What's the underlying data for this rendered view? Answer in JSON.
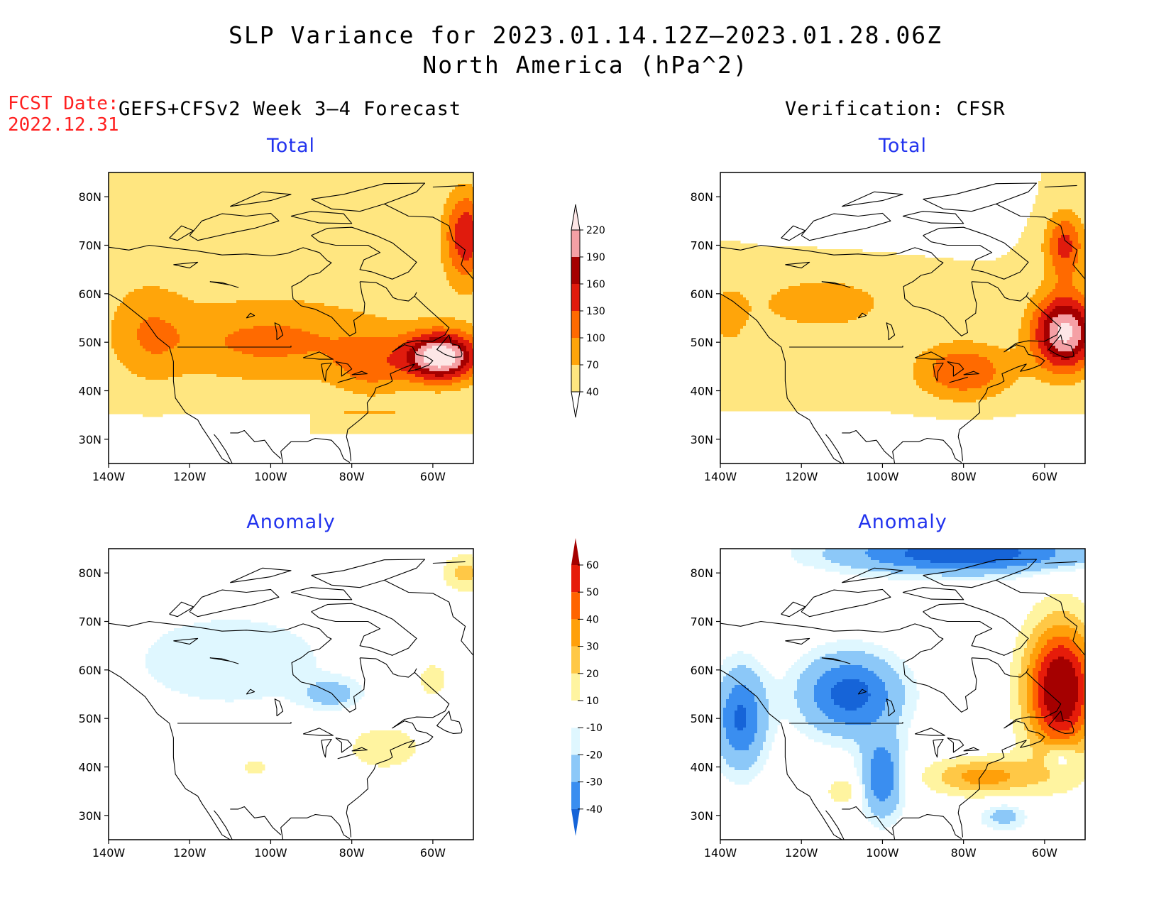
{
  "title_line1": "SLP Variance for 2023.01.14.12Z–2023.01.28.06Z",
  "title_line2": "North America (hPa^2)",
  "fcst_label": "FCST Date:",
  "fcst_date": "2022.12.31",
  "left_header": "GEFS+CFSv2 Week 3–4 Forecast",
  "right_header": "Verification: CFSR",
  "panels": [
    {
      "name": "forecast-total",
      "title": "Total"
    },
    {
      "name": "verification-total",
      "title": "Total"
    },
    {
      "name": "forecast-anomaly",
      "title": "Anomaly"
    },
    {
      "name": "verification-anomaly",
      "title": "Anomaly"
    }
  ],
  "axes": {
    "lon_range": [
      -140,
      -50
    ],
    "lat_range": [
      25,
      85
    ],
    "lon_ticks": [
      "140W",
      "120W",
      "100W",
      "80W",
      "60W"
    ],
    "lon_tick_values": [
      -140,
      -120,
      -100,
      -80,
      -60
    ],
    "lat_ticks": [
      "30N",
      "40N",
      "50N",
      "60N",
      "70N",
      "80N"
    ],
    "lat_tick_values": [
      30,
      40,
      50,
      60,
      70,
      80
    ]
  },
  "colorbar_total": {
    "labels": [
      "40",
      "70",
      "100",
      "130",
      "160",
      "190",
      "220"
    ],
    "colors": [
      "#ffe680",
      "#ffa50a",
      "#ff6a00",
      "#e01b0d",
      "#a50000",
      "#f5a0a5",
      "#fde6e6"
    ]
  },
  "colorbar_anomaly": {
    "labels": [
      "-40",
      "-30",
      "-20",
      "-10",
      "10",
      "20",
      "30",
      "40",
      "50",
      "60"
    ],
    "colors": [
      "#1664d8",
      "#3a8ef0",
      "#8cc8f8",
      "#dff7ff",
      "#ffffff",
      "#fff4a0",
      "#ffc846",
      "#ffa00a",
      "#ff6400",
      "#e61c0a",
      "#a50000"
    ]
  },
  "colors": {
    "title_blue": "#2233ee",
    "fcst_red": "#ff2020"
  }
}
